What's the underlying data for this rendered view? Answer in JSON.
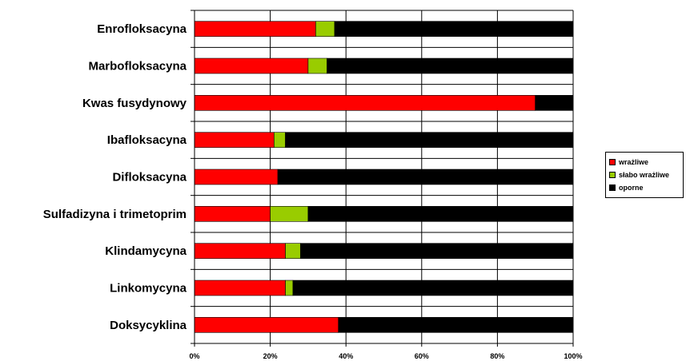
{
  "chart_data": {
    "type": "bar",
    "orientation": "horizontal",
    "stacked": "percent",
    "categories": [
      "Enrofloksacyna",
      "Marbofloksacyna",
      "Kwas fusydynowy",
      "Ibafloksacyna",
      "Difloksacyna",
      "Sulfadizyna i trimetoprim",
      "Klindamycyna",
      "Linkomycyna",
      "Doksycyklina"
    ],
    "series": [
      {
        "name": "wrażliwe",
        "color": "#ff0000",
        "values": [
          32,
          30,
          90,
          21,
          22,
          20,
          24,
          24,
          38
        ]
      },
      {
        "name": "słabo wrażliwe",
        "color": "#99cc00",
        "values": [
          5,
          5,
          0,
          3,
          0,
          10,
          4,
          2,
          0
        ]
      },
      {
        "name": "oporne",
        "color": "#000000",
        "values": [
          63,
          65,
          10,
          76,
          78,
          70,
          72,
          74,
          62
        ]
      }
    ],
    "x_ticks": [
      "0%",
      "20%",
      "40%",
      "60%",
      "80%",
      "100%"
    ],
    "xlim": [
      0,
      100
    ],
    "grid": true,
    "legend_position": "right"
  }
}
